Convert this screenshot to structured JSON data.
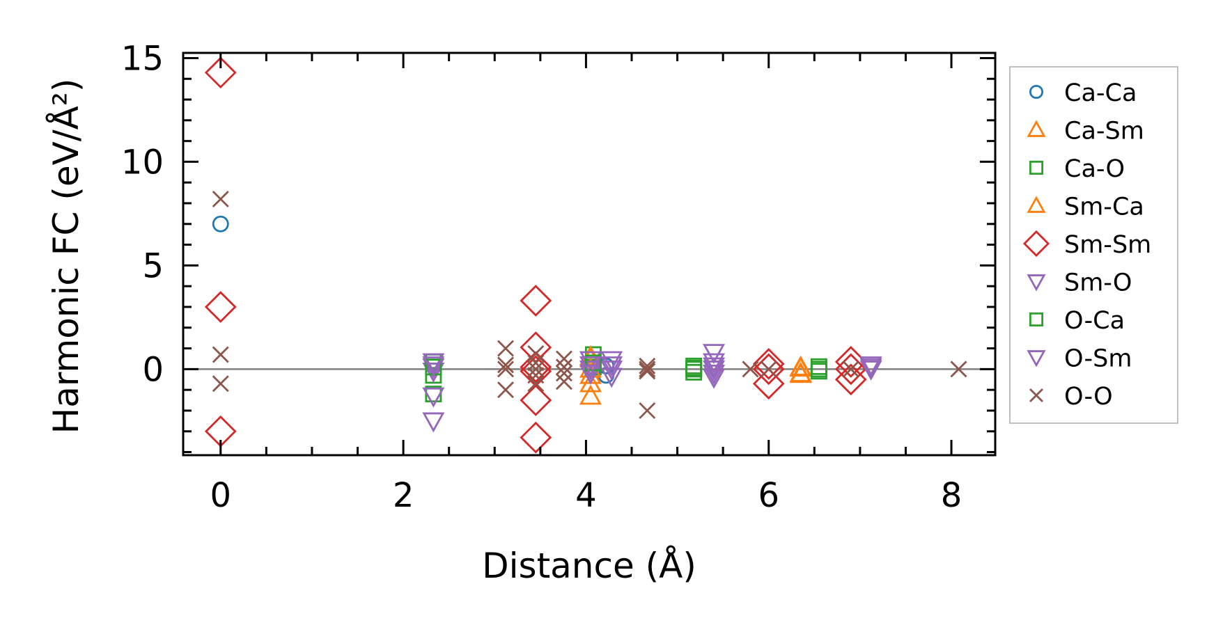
{
  "chart_data": {
    "type": "scatter",
    "title": "",
    "xlabel": "Distance (Å)",
    "ylabel": "Harmonic FC (eV/Å²)",
    "xlim": [
      -0.41,
      8.48
    ],
    "ylim": [
      -4.15,
      15.25
    ],
    "xticks": [
      0,
      2,
      4,
      6,
      8
    ],
    "yticks": [
      0,
      5,
      10,
      15
    ],
    "x_minor_step": 0.5,
    "y_minor_step": 1,
    "grid": false,
    "zero_line": true,
    "zero_line_color": "#808080",
    "legend_position": "outside-right",
    "series": [
      {
        "name": "Ca-Ca",
        "marker": "circle",
        "color": "#1f77b4",
        "points": [
          [
            0,
            7.0
          ],
          [
            4.22,
            0.15
          ],
          [
            4.22,
            -0.3
          ]
        ]
      },
      {
        "name": "Ca-Sm",
        "marker": "triangle-up",
        "color": "#ff7f0e",
        "points": [
          [
            4.05,
            0.5
          ],
          [
            4.05,
            -0.3
          ],
          [
            4.05,
            -0.7
          ],
          [
            4.05,
            -1.3
          ],
          [
            6.35,
            0.05
          ],
          [
            6.35,
            -0.2
          ]
        ]
      },
      {
        "name": "Ca-O",
        "marker": "square",
        "color": "#2ca02c",
        "points": [
          [
            2.33,
            0.35
          ],
          [
            2.33,
            -0.3
          ],
          [
            2.33,
            -1.2
          ],
          [
            4.08,
            0.7
          ],
          [
            4.08,
            0.1
          ],
          [
            5.18,
            0.15
          ],
          [
            5.18,
            -0.15
          ],
          [
            5.18,
            0.0
          ],
          [
            6.55,
            0.12
          ],
          [
            6.55,
            -0.1
          ]
        ]
      },
      {
        "name": "Sm-Ca",
        "marker": "triangle-up",
        "color": "#ff7f0e",
        "points": [
          [
            4.05,
            0.6
          ],
          [
            4.05,
            0.0
          ],
          [
            6.35,
            0.1
          ],
          [
            6.35,
            -0.25
          ]
        ]
      },
      {
        "name": "Sm-Sm",
        "marker": "diamond",
        "color": "#d62728",
        "points": [
          [
            0,
            14.3
          ],
          [
            0,
            3.0
          ],
          [
            0,
            -3.0
          ],
          [
            3.45,
            3.3
          ],
          [
            3.45,
            1.05
          ],
          [
            3.45,
            0.1
          ],
          [
            3.45,
            -0.1
          ],
          [
            3.45,
            -1.5
          ],
          [
            3.45,
            -3.3
          ],
          [
            6.0,
            0.25
          ],
          [
            6.0,
            0.0
          ],
          [
            6.0,
            -0.7
          ],
          [
            6.9,
            0.35
          ],
          [
            6.9,
            0.0
          ],
          [
            6.9,
            -0.5
          ]
        ]
      },
      {
        "name": "Sm-O",
        "marker": "triangle-down",
        "color": "#9467bd",
        "points": [
          [
            2.33,
            0.35
          ],
          [
            2.33,
            0.1
          ],
          [
            2.33,
            -0.1
          ],
          [
            2.33,
            -1.3
          ],
          [
            2.33,
            -2.5
          ],
          [
            4.05,
            0.45
          ],
          [
            4.05,
            0.0
          ],
          [
            4.05,
            -0.2
          ],
          [
            4.28,
            0.45
          ],
          [
            4.28,
            0.0
          ],
          [
            4.28,
            -0.35
          ],
          [
            5.4,
            0.8
          ],
          [
            5.4,
            0.35
          ],
          [
            5.4,
            0.0
          ],
          [
            5.4,
            -0.4
          ],
          [
            7.12,
            0.2
          ],
          [
            7.12,
            0.0
          ]
        ]
      },
      {
        "name": "O-Ca",
        "marker": "square",
        "color": "#2ca02c",
        "points": [
          [
            2.33,
            0.1
          ],
          [
            4.08,
            0.3
          ],
          [
            5.18,
            0.05
          ],
          [
            6.55,
            0.0
          ]
        ]
      },
      {
        "name": "O-Sm",
        "marker": "triangle-down",
        "color": "#9467bd",
        "points": [
          [
            2.33,
            0.2
          ],
          [
            4.05,
            0.2
          ],
          [
            4.28,
            0.2
          ],
          [
            5.4,
            0.15
          ],
          [
            5.4,
            -0.2
          ],
          [
            7.12,
            0.1
          ]
        ]
      },
      {
        "name": "O-O",
        "marker": "x",
        "color": "#8c564b",
        "points": [
          [
            0,
            8.2
          ],
          [
            0,
            0.7
          ],
          [
            0,
            -0.7
          ],
          [
            3.12,
            1.0
          ],
          [
            3.12,
            0.2
          ],
          [
            3.12,
            0.0
          ],
          [
            3.12,
            -1.0
          ],
          [
            3.45,
            0.75
          ],
          [
            3.45,
            0.3
          ],
          [
            3.45,
            0.0
          ],
          [
            3.45,
            -0.3
          ],
          [
            3.45,
            -0.7
          ],
          [
            3.76,
            0.5
          ],
          [
            3.76,
            0.1
          ],
          [
            3.76,
            -0.2
          ],
          [
            3.76,
            -0.6
          ],
          [
            4.67,
            0.15
          ],
          [
            4.67,
            0.0
          ],
          [
            4.67,
            -0.1
          ],
          [
            4.67,
            -2.0
          ],
          [
            5.8,
            0.0
          ],
          [
            6.0,
            0.0
          ],
          [
            6.9,
            0.0
          ],
          [
            8.08,
            0.0
          ]
        ]
      }
    ]
  }
}
